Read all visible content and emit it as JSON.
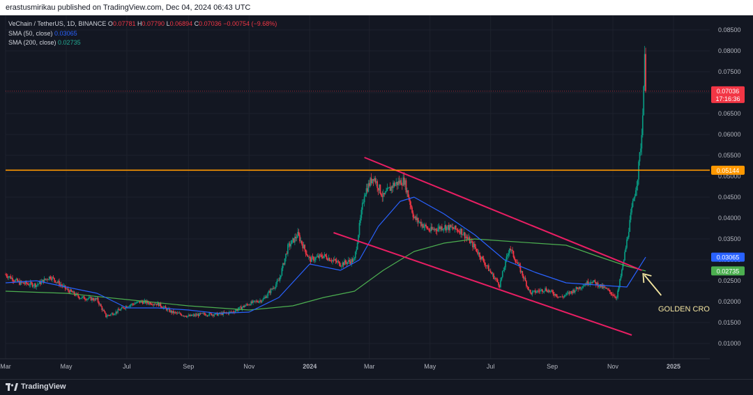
{
  "header": {
    "publisher": "erastusmirikau published on TradingView.com, Dec 04, 2024 06:43 UTC"
  },
  "legend": {
    "symbol": "VeChain / TetherUS, 1D, BINANCE",
    "o_label": "O",
    "o": "0.07781",
    "h_label": "H",
    "h": "0.07790",
    "l_label": "L",
    "l": "0.06894",
    "c_label": "C",
    "c": "0.07036",
    "change": "−0.00754 (−9.68%)",
    "sma50_label": "SMA (50, close)",
    "sma50": "0.03065",
    "sma200_label": "SMA (200, close)",
    "sma200": "0.02735"
  },
  "price_tags": {
    "last": "0.07036",
    "countdown": "17:16:36",
    "level": "0.05144",
    "sma50": "0.03065",
    "sma200": "0.02735"
  },
  "annotation": {
    "text": "GOLDEN CROS"
  },
  "footer": {
    "brand": "TradingView"
  },
  "colors": {
    "background": "#131722",
    "up": "#089981",
    "down": "#f23645",
    "sma50": "#2962ff",
    "sma200": "#4caf50",
    "channel": "#e91e63",
    "level": "#ff9800",
    "annotation": "#f5e6a1"
  },
  "chart_data": {
    "type": "candlestick",
    "title": "VeChain / TetherUS, 1D, BINANCE",
    "ylim": [
      0.0065,
      0.0885
    ],
    "y_ticks": [
      "0.01000",
      "0.01500",
      "0.02000",
      "0.02500",
      "0.03000",
      "0.03500",
      "0.04000",
      "0.04500",
      "0.05000",
      "0.05500",
      "0.06000",
      "0.06500",
      "0.07000",
      "0.07500",
      "0.08000",
      "0.08500"
    ],
    "x_ticks": [
      "Mar",
      "May",
      "Jul",
      "Sep",
      "Nov",
      "2024",
      "Mar",
      "May",
      "Jul",
      "Sep",
      "Nov",
      "2025"
    ],
    "price_path": [
      [
        "2023-03-01",
        0.0265
      ],
      [
        "2023-03-15",
        0.0245
      ],
      [
        "2023-04-01",
        0.024
      ],
      [
        "2023-04-15",
        0.026
      ],
      [
        "2023-05-01",
        0.023
      ],
      [
        "2023-05-15",
        0.021
      ],
      [
        "2023-06-01",
        0.0205
      ],
      [
        "2023-06-10",
        0.0165
      ],
      [
        "2023-06-20",
        0.0175
      ],
      [
        "2023-07-01",
        0.019
      ],
      [
        "2023-07-15",
        0.02
      ],
      [
        "2023-08-01",
        0.0195
      ],
      [
        "2023-08-15",
        0.0175
      ],
      [
        "2023-09-01",
        0.0165
      ],
      [
        "2023-09-15",
        0.017
      ],
      [
        "2023-10-01",
        0.017
      ],
      [
        "2023-10-15",
        0.0175
      ],
      [
        "2023-11-01",
        0.0195
      ],
      [
        "2023-11-15",
        0.0205
      ],
      [
        "2023-12-01",
        0.025
      ],
      [
        "2023-12-10",
        0.033
      ],
      [
        "2023-12-20",
        0.036
      ],
      [
        "2024-01-01",
        0.03
      ],
      [
        "2024-01-15",
        0.031
      ],
      [
        "2024-02-01",
        0.029
      ],
      [
        "2024-02-15",
        0.03
      ],
      [
        "2024-02-25",
        0.046
      ],
      [
        "2024-03-05",
        0.05
      ],
      [
        "2024-03-15",
        0.045
      ],
      [
        "2024-03-25",
        0.048
      ],
      [
        "2024-04-05",
        0.049
      ],
      [
        "2024-04-15",
        0.04
      ],
      [
        "2024-05-01",
        0.037
      ],
      [
        "2024-05-15",
        0.038
      ],
      [
        "2024-06-01",
        0.037
      ],
      [
        "2024-06-15",
        0.033
      ],
      [
        "2024-07-01",
        0.027
      ],
      [
        "2024-07-10",
        0.024
      ],
      [
        "2024-07-20",
        0.033
      ],
      [
        "2024-08-01",
        0.027
      ],
      [
        "2024-08-10",
        0.022
      ],
      [
        "2024-08-25",
        0.023
      ],
      [
        "2024-09-10",
        0.021
      ],
      [
        "2024-09-25",
        0.023
      ],
      [
        "2024-10-10",
        0.025
      ],
      [
        "2024-10-25",
        0.023
      ],
      [
        "2024-11-05",
        0.021
      ],
      [
        "2024-11-12",
        0.03
      ],
      [
        "2024-11-20",
        0.042
      ],
      [
        "2024-11-26",
        0.05
      ],
      [
        "2024-11-30",
        0.06
      ],
      [
        "2024-12-03",
        0.0778
      ],
      [
        "2024-12-04",
        0.07036
      ]
    ],
    "sma50": [
      [
        "2023-03-01",
        0.0245
      ],
      [
        "2023-04-01",
        0.025
      ],
      [
        "2023-05-01",
        0.0235
      ],
      [
        "2023-06-01",
        0.022
      ],
      [
        "2023-07-01",
        0.0185
      ],
      [
        "2023-08-01",
        0.0185
      ],
      [
        "2023-09-01",
        0.018
      ],
      [
        "2023-10-01",
        0.0172
      ],
      [
        "2023-11-01",
        0.0175
      ],
      [
        "2023-12-01",
        0.021
      ],
      [
        "2024-01-01",
        0.029
      ],
      [
        "2024-02-01",
        0.0275
      ],
      [
        "2024-02-20",
        0.03
      ],
      [
        "2024-03-10",
        0.038
      ],
      [
        "2024-04-01",
        0.044
      ],
      [
        "2024-04-15",
        0.045
      ],
      [
        "2024-05-15",
        0.041
      ],
      [
        "2024-06-15",
        0.036
      ],
      [
        "2024-07-15",
        0.03
      ],
      [
        "2024-08-15",
        0.027
      ],
      [
        "2024-09-15",
        0.0245
      ],
      [
        "2024-10-15",
        0.024
      ],
      [
        "2024-11-15",
        0.0235
      ],
      [
        "2024-12-04",
        0.03065
      ]
    ],
    "sma200": [
      [
        "2023-03-01",
        0.0225
      ],
      [
        "2023-05-01",
        0.022
      ],
      [
        "2023-07-01",
        0.0205
      ],
      [
        "2023-09-01",
        0.019
      ],
      [
        "2023-11-01",
        0.018
      ],
      [
        "2023-12-15",
        0.019
      ],
      [
        "2024-01-15",
        0.021
      ],
      [
        "2024-02-15",
        0.0225
      ],
      [
        "2024-03-15",
        0.0275
      ],
      [
        "2024-04-15",
        0.032
      ],
      [
        "2024-05-15",
        0.034
      ],
      [
        "2024-06-15",
        0.035
      ],
      [
        "2024-07-15",
        0.0345
      ],
      [
        "2024-08-15",
        0.034
      ],
      [
        "2024-09-15",
        0.0335
      ],
      [
        "2024-10-15",
        0.031
      ],
      [
        "2024-11-15",
        0.0285
      ],
      [
        "2024-12-04",
        0.02735
      ]
    ],
    "channel_upper": [
      [
        "2024-02-25",
        0.0545
      ],
      [
        "2024-11-30",
        0.0275
      ]
    ],
    "channel_lower": [
      [
        "2024-01-25",
        0.0365
      ],
      [
        "2024-11-20",
        0.012
      ]
    ],
    "horizontal_level": 0.05144,
    "last_price": 0.07036
  }
}
